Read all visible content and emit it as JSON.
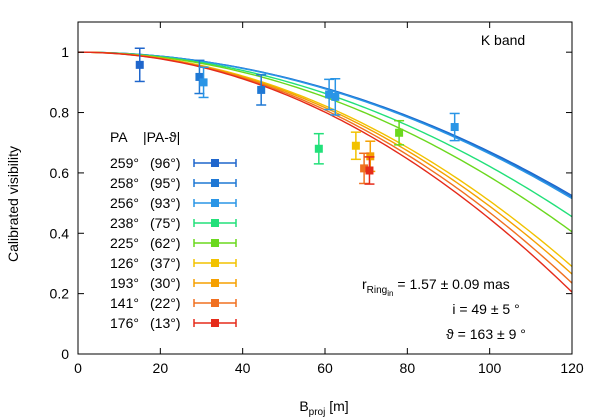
{
  "chart_data": {
    "type": "scatter",
    "xlabel_main": "B",
    "xlabel_sub": "proj",
    "xlabel_unit": " [m]",
    "ylabel": "Calibrated visibility",
    "xlim": [
      0,
      120
    ],
    "ylim": [
      0,
      1.1
    ],
    "x_ticks": [
      0,
      20,
      40,
      60,
      80,
      100,
      120
    ],
    "y_ticks": [
      0,
      0.2,
      0.4,
      0.6,
      0.8,
      1
    ],
    "grid": false,
    "band_label": "K band",
    "legend": {
      "placement": "left",
      "header_pa": "PA",
      "header_diff": "|PA-ϑ|"
    },
    "annotations": {
      "r_main": "r",
      "r_sub": "Ring",
      "r_subsub": "in",
      "r_value": " = 1.57 ± 0.09 mas",
      "i_line": "i =   49 ± 5 °",
      "theta_line": "ϑ = 163 ± 9 °"
    },
    "series": [
      {
        "pa": "259°",
        "diff": "(96°)",
        "color": "#1f66cc",
        "points": [
          {
            "x": 15.0,
            "y": 0.958,
            "err": 0.055
          }
        ],
        "curve_end": 0.525
      },
      {
        "pa": "258°",
        "diff": "(95°)",
        "color": "#1f78d4",
        "points": [
          {
            "x": 29.5,
            "y": 0.918,
            "err": 0.055
          },
          {
            "x": 44.5,
            "y": 0.875,
            "err": 0.05
          }
        ],
        "curve_end": 0.52
      },
      {
        "pa": "256°",
        "diff": "(93°)",
        "color": "#2a95e6",
        "points": [
          {
            "x": 30.5,
            "y": 0.9,
            "err": 0.05
          },
          {
            "x": 61.0,
            "y": 0.86,
            "err": 0.05
          },
          {
            "x": 62.5,
            "y": 0.852,
            "err": 0.06
          },
          {
            "x": 91.5,
            "y": 0.752,
            "err": 0.045
          }
        ],
        "curve_end": 0.515
      },
      {
        "pa": "238°",
        "diff": "(75°)",
        "color": "#22e07a",
        "points": [
          {
            "x": 58.5,
            "y": 0.68,
            "err": 0.05
          }
        ],
        "curve_end": 0.455
      },
      {
        "pa": "225°",
        "diff": "(62°)",
        "color": "#6bd81e",
        "points": [
          {
            "x": 78.0,
            "y": 0.733,
            "err": 0.04
          }
        ],
        "curve_end": 0.405
      },
      {
        "pa": "126°",
        "diff": "(37°)",
        "color": "#f2c200",
        "points": [
          {
            "x": 67.5,
            "y": 0.69,
            "err": 0.045
          }
        ],
        "curve_end": 0.29
      },
      {
        "pa": "193°",
        "diff": "(30°)",
        "color": "#f5a000",
        "points": [
          {
            "x": 71.0,
            "y": 0.655,
            "err": 0.05
          }
        ],
        "curve_end": 0.265
      },
      {
        "pa": "141°",
        "diff": "(22°)",
        "color": "#f07020",
        "points": [
          {
            "x": 69.5,
            "y": 0.615,
            "err": 0.05
          }
        ],
        "curve_end": 0.235
      },
      {
        "pa": "176°",
        "diff": "(13°)",
        "color": "#e52b1a",
        "points": [
          {
            "x": 70.8,
            "y": 0.608,
            "err": 0.045
          }
        ],
        "curve_end": 0.205
      }
    ]
  }
}
